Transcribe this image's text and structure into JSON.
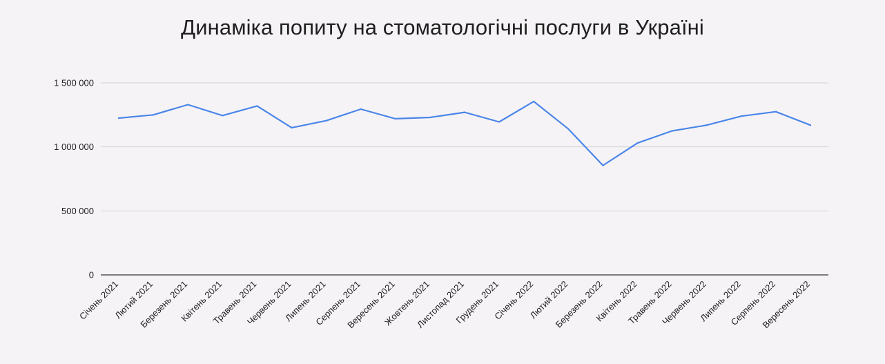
{
  "chart_data": {
    "type": "line",
    "title": "Динаміка попиту на стоматологічні послуги в Україні",
    "xlabel": "",
    "ylabel": "",
    "categories": [
      "Січень 2021",
      "Лютий 2021",
      "Березень 2021",
      "Квітень 2021",
      "Травень 2021",
      "Червень 2021",
      "Липень 2021",
      "Серпень 2021",
      "Вересень 2021",
      "Жовтень 2021",
      "Листопад 2021",
      "Грудень 2021",
      "Січень 2022",
      "Лютий 2022",
      "Березень 2022",
      "Квітень 2022",
      "Травень 2022",
      "Червень 2022",
      "Липень 2022",
      "Серпень 2022",
      "Вересень 2022"
    ],
    "series": [
      {
        "color": "#4a86e8",
        "values": [
          1225000,
          1250000,
          1330000,
          1245000,
          1320000,
          1150000,
          1205000,
          1295000,
          1220000,
          1230000,
          1270000,
          1195000,
          1355000,
          1140000,
          855000,
          1030000,
          1125000,
          1170000,
          1240000,
          1275000,
          1170000
        ]
      }
    ],
    "ylim": [
      0,
      1500000
    ],
    "yticks": [
      0,
      500000,
      1000000,
      1500000
    ],
    "ytick_labels": [
      "0",
      "500 000",
      "1 000 000",
      "1 500 000"
    ],
    "grid": true,
    "legend": "none"
  }
}
